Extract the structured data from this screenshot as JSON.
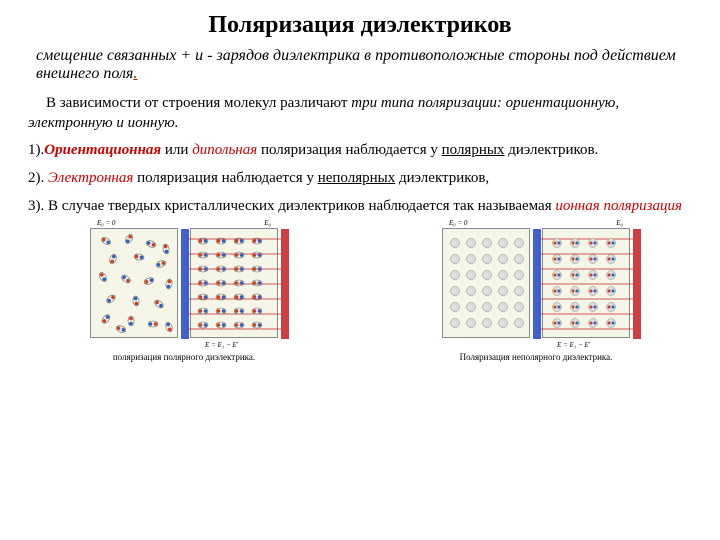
{
  "title": {
    "text": "Поляризация диэлектриков",
    "fontsize": 24,
    "color": "#000000"
  },
  "definition": {
    "text": "смещение связанных + и - зарядов диэлектрика в противоположные стороны под действием внешнего поля",
    "fontsize": 16,
    "period_color": "#cc0000"
  },
  "body": {
    "fontsize": 15,
    "intro_line1": "В зависимости от строения молекул различают ",
    "intro_italic": "три типа поляризации: ориентационную, электронную и ионную.",
    "item1_num": "1).",
    "item1_red": "Ориентационная",
    "item1_mid": " или ",
    "item1_red2": "дипольная",
    "item1_tail1": " поляризация наблюдается у ",
    "item1_underline": "полярных",
    "item1_tail2": " диэлектриков.",
    "item2_num": "2). ",
    "item2_red": "Электронная",
    "item2_mid": "  поляризация наблюдается у ",
    "item2_underline": "неполярных",
    "item2_tail": " диэлектриков,",
    "item3_num": "3). ",
    "item3_text1": "В случае твердых кристаллических диэлектриков наблюдается так называемая ",
    "item3_red": "ионная поляризация"
  },
  "diagrams": {
    "caption_left": "поляризация полярного диэлектрика.",
    "caption_right": "Поляризация неполярного диэлектрика.",
    "colors": {
      "bg": "#f5f5e8",
      "border": "#888888",
      "pos_charge": "#d04020",
      "neg_charge": "#3060c0",
      "field_line": "#cc2020",
      "plate_left": "#4060d0",
      "plate_right": "#d04040"
    },
    "label_top_a": "E₀ = 0",
    "label_top_b": "E₀",
    "label_bottom": "E = E₁ − E'",
    "label_top_c": "E₀ = 0",
    "label_top_d": "E₀"
  }
}
